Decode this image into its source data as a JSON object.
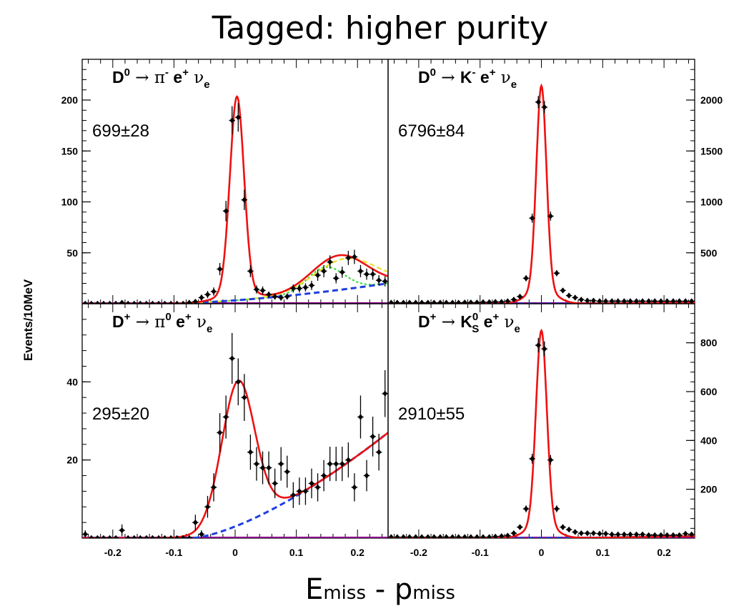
{
  "slide": {
    "title": "Tagged:  higher purity",
    "xaxis_title_main": "E",
    "xaxis_title_sub1": "miss",
    "xaxis_title_dash": " - p",
    "xaxis_title_sub2": "miss",
    "yaxis_title": "Events/10MeV"
  },
  "colors": {
    "fit_total": "#ee1111",
    "background": "#1f3fe0",
    "peaking_green": "#33dd33",
    "peaking_yellow": "#e8e022",
    "data": "#000000",
    "baseline": "#880088"
  },
  "chart_data": [
    {
      "type": "scatter",
      "decay": "D0 → π- e+ νe",
      "decay_parts": {
        "parent": "D",
        "parent_sup": "0",
        "arrow": "→",
        "meson": "π",
        "meson_sup": "-",
        "lepton": "e",
        "lepton_sup": "+",
        "nu": "ν",
        "nu_sub": "e"
      },
      "yield": "699±28",
      "xlim": [
        -0.25,
        0.25
      ],
      "ylim": [
        0,
        240
      ],
      "yticks": [
        50,
        100,
        150,
        200
      ],
      "ytick_side": "left",
      "xticks": [],
      "fit": {
        "peak_mu": 0.003,
        "peak_amp": 192,
        "peak_sigma": 0.0115,
        "tail_amp": 8,
        "tail_sigma": 0.028,
        "bump_amp": 34,
        "bump_mu": 0.17,
        "bump_sigma": 0.045,
        "bump2_amp": 0,
        "bump2_mu": 0,
        "bump2_sigma": 1,
        "bkg_start": -0.12,
        "bkg_end": 0.25,
        "bkg_level": 20,
        "bkg_power": 1.6
      },
      "components": [
        {
          "kind": "green",
          "amp": 24,
          "mu": 0.148,
          "sigma": 0.03
        },
        {
          "kind": "yellow",
          "amp": 30,
          "mu": 0.18,
          "sigma": 0.05
        }
      ],
      "points": {
        "x": [
          -0.245,
          -0.235,
          -0.225,
          -0.215,
          -0.205,
          -0.195,
          -0.185,
          -0.175,
          -0.165,
          -0.155,
          -0.145,
          -0.135,
          -0.125,
          -0.115,
          -0.105,
          -0.095,
          -0.085,
          -0.075,
          -0.065,
          -0.055,
          -0.045,
          -0.035,
          -0.025,
          -0.015,
          -0.005,
          0.005,
          0.015,
          0.025,
          0.035,
          0.045,
          0.055,
          0.065,
          0.075,
          0.085,
          0.095,
          0.105,
          0.115,
          0.125,
          0.135,
          0.145,
          0.155,
          0.165,
          0.175,
          0.185,
          0.195,
          0.205,
          0.215,
          0.225,
          0.235,
          0.245
        ],
        "y": [
          0,
          0,
          0,
          0,
          0,
          0,
          1,
          0,
          0,
          0,
          0,
          0,
          0,
          0,
          0,
          0,
          0,
          1,
          2,
          6,
          9,
          12,
          34,
          91,
          180,
          183,
          102,
          32,
          14,
          13,
          9,
          7,
          6,
          7,
          15,
          15,
          16,
          18,
          28,
          32,
          41,
          25,
          31,
          45,
          46,
          32,
          29,
          29,
          23,
          22
        ],
        "err": [
          1,
          1,
          1,
          1,
          1,
          1,
          1.5,
          1,
          1,
          1,
          1,
          1,
          1,
          1,
          1,
          1,
          1,
          1.5,
          2,
          3,
          3.5,
          4,
          6,
          10,
          14,
          14,
          10,
          6,
          4,
          4,
          3,
          3,
          3,
          3,
          4,
          4,
          4,
          4.5,
          5.5,
          6,
          6.5,
          5,
          5.5,
          7,
          7,
          6,
          5.5,
          5.5,
          5,
          5
        ]
      }
    },
    {
      "type": "scatter",
      "decay": "D0 → K- e+ νe",
      "decay_parts": {
        "parent": "D",
        "parent_sup": "0",
        "arrow": "→",
        "meson": "K",
        "meson_sup": "-",
        "lepton": "e",
        "lepton_sup": "+",
        "nu": "ν",
        "nu_sub": "e"
      },
      "yield": "6796±84",
      "xlim": [
        -0.25,
        0.25
      ],
      "ylim": [
        0,
        2400
      ],
      "yticks": [
        500,
        1000,
        1500,
        2000
      ],
      "ytick_side": "right",
      "xticks": [],
      "fit": {
        "peak_mu": 0.0,
        "peak_amp": 1990,
        "peak_sigma": 0.0082,
        "tail_amp": 150,
        "tail_sigma": 0.022,
        "bump_amp": 0,
        "bump_mu": 0,
        "bump_sigma": 1,
        "bump2_amp": 0,
        "bump2_mu": 0,
        "bump2_sigma": 1,
        "bkg_start": 0.05,
        "bkg_end": 0.25,
        "bkg_level": 12,
        "bkg_power": 1.0
      },
      "components": [],
      "points": {
        "x": [
          -0.245,
          -0.235,
          -0.225,
          -0.215,
          -0.205,
          -0.195,
          -0.185,
          -0.175,
          -0.165,
          -0.155,
          -0.145,
          -0.135,
          -0.125,
          -0.115,
          -0.105,
          -0.095,
          -0.085,
          -0.075,
          -0.065,
          -0.055,
          -0.045,
          -0.035,
          -0.025,
          -0.015,
          -0.005,
          0.005,
          0.015,
          0.025,
          0.035,
          0.045,
          0.055,
          0.065,
          0.075,
          0.085,
          0.095,
          0.105,
          0.115,
          0.125,
          0.135,
          0.145,
          0.155,
          0.165,
          0.175,
          0.185,
          0.195,
          0.205,
          0.215,
          0.225,
          0.235,
          0.245
        ],
        "y": [
          10,
          10,
          10,
          10,
          10,
          10,
          10,
          10,
          10,
          10,
          10,
          10,
          12,
          12,
          12,
          15,
          15,
          18,
          18,
          25,
          40,
          70,
          250,
          840,
          1980,
          1930,
          860,
          300,
          130,
          80,
          60,
          40,
          30,
          30,
          25,
          25,
          25,
          25,
          25,
          25,
          25,
          25,
          25,
          25,
          25,
          25,
          25,
          25,
          25,
          25
        ],
        "err": [
          8,
          8,
          8,
          8,
          8,
          8,
          8,
          8,
          8,
          8,
          8,
          8,
          8,
          8,
          8,
          8,
          8,
          8,
          8,
          10,
          14,
          18,
          30,
          45,
          60,
          60,
          45,
          30,
          20,
          16,
          14,
          12,
          10,
          10,
          10,
          10,
          10,
          10,
          10,
          10,
          10,
          10,
          10,
          10,
          10,
          10,
          10,
          10,
          10,
          10
        ]
      }
    },
    {
      "type": "scatter",
      "decay": "D+ → π0 e+ νe",
      "decay_parts": {
        "parent": "D",
        "parent_sup": "+",
        "arrow": "→",
        "meson": "π",
        "meson_sup": "0",
        "lepton": "e",
        "lepton_sup": "+",
        "nu": "ν",
        "nu_sub": "e"
      },
      "yield": "295±20",
      "xlim": [
        -0.25,
        0.25
      ],
      "ylim": [
        0,
        60
      ],
      "yticks": [
        20,
        40
      ],
      "ytick_side": "left",
      "xticks": [
        -0.2,
        -0.1,
        0,
        0.1,
        0.2
      ],
      "fit": {
        "peak_mu": 0.005,
        "peak_amp": 32,
        "peak_sigma": 0.026,
        "tail_amp": 5,
        "tail_sigma": 0.04,
        "bump_amp": 0,
        "bump_mu": 0,
        "bump_sigma": 1,
        "bump2_amp": 0,
        "bump2_mu": 0,
        "bump2_sigma": 1,
        "bkg_start": -0.07,
        "bkg_end": 0.25,
        "bkg_level": 27,
        "bkg_power": 1.45
      },
      "components": [],
      "points": {
        "x": [
          -0.245,
          -0.235,
          -0.225,
          -0.215,
          -0.205,
          -0.195,
          -0.185,
          -0.175,
          -0.165,
          -0.155,
          -0.145,
          -0.135,
          -0.125,
          -0.115,
          -0.105,
          -0.095,
          -0.085,
          -0.075,
          -0.065,
          -0.055,
          -0.045,
          -0.035,
          -0.025,
          -0.015,
          -0.005,
          0.005,
          0.015,
          0.025,
          0.035,
          0.045,
          0.055,
          0.065,
          0.075,
          0.085,
          0.095,
          0.105,
          0.115,
          0.125,
          0.135,
          0.145,
          0.155,
          0.165,
          0.175,
          0.185,
          0.195,
          0.205,
          0.215,
          0.225,
          0.235,
          0.245
        ],
        "y": [
          1,
          0,
          0,
          0,
          0,
          0,
          2,
          0,
          0,
          0,
          0,
          0,
          0,
          0,
          0,
          0,
          0,
          0,
          4,
          1,
          8,
          13,
          27,
          31,
          46,
          40,
          36,
          22,
          19,
          18,
          18,
          14,
          19,
          17,
          11,
          12,
          12,
          14,
          13,
          16,
          19,
          19,
          19,
          20,
          13,
          31,
          16,
          26,
          22,
          37
        ],
        "err": [
          1,
          0.6,
          0.6,
          0.6,
          0.6,
          0.6,
          1.5,
          0.6,
          0.6,
          0.6,
          0.6,
          0.6,
          0.6,
          0.6,
          0.6,
          0.6,
          0.6,
          0.6,
          2,
          1,
          2.8,
          3.6,
          5,
          5.5,
          6.5,
          6,
          6,
          4.5,
          4.3,
          4.2,
          4.2,
          3.8,
          4.3,
          4.1,
          3.3,
          3.5,
          3.5,
          3.8,
          3.6,
          4,
          4.4,
          4.4,
          4.4,
          4.5,
          3.6,
          5.5,
          4,
          5.1,
          4.7,
          6
        ]
      }
    },
    {
      "type": "scatter",
      "decay": "D+ → KS0 e+ νe",
      "decay_parts": {
        "parent": "D",
        "parent_sup": "+",
        "arrow": "→",
        "meson": "K",
        "meson_sup": "0",
        "meson_sub": "S",
        "lepton": "e",
        "lepton_sup": "+",
        "nu": "ν",
        "nu_sub": "e"
      },
      "yield": "2910±55",
      "xlim": [
        -0.25,
        0.25
      ],
      "ylim": [
        0,
        960
      ],
      "yticks": [
        200,
        400,
        600,
        800
      ],
      "ytick_side": "right",
      "xticks": [
        -0.2,
        -0.1,
        0,
        0.1,
        0.2
      ],
      "fit": {
        "peak_mu": 0.0,
        "peak_amp": 790,
        "peak_sigma": 0.0088,
        "tail_amp": 60,
        "tail_sigma": 0.022,
        "bump_amp": 0,
        "bump_mu": 0,
        "bump_sigma": 1,
        "bump2_amp": 0,
        "bump2_mu": 0,
        "bump2_sigma": 1,
        "bkg_start": 0.05,
        "bkg_end": 0.25,
        "bkg_level": 8,
        "bkg_power": 1.0
      },
      "components": [],
      "points": {
        "x": [
          -0.245,
          -0.235,
          -0.225,
          -0.215,
          -0.205,
          -0.195,
          -0.185,
          -0.175,
          -0.165,
          -0.155,
          -0.145,
          -0.135,
          -0.125,
          -0.115,
          -0.105,
          -0.095,
          -0.085,
          -0.075,
          -0.065,
          -0.055,
          -0.045,
          -0.035,
          -0.025,
          -0.015,
          -0.005,
          0.005,
          0.015,
          0.025,
          0.035,
          0.045,
          0.055,
          0.065,
          0.075,
          0.085,
          0.095,
          0.105,
          0.115,
          0.125,
          0.135,
          0.145,
          0.155,
          0.165,
          0.175,
          0.185,
          0.195,
          0.205,
          0.215,
          0.225,
          0.235,
          0.245
        ],
        "y": [
          4,
          4,
          4,
          4,
          4,
          4,
          4,
          4,
          4,
          4,
          4,
          4,
          4,
          4,
          4,
          4,
          4,
          6,
          8,
          10,
          20,
          45,
          120,
          325,
          790,
          775,
          320,
          120,
          45,
          35,
          25,
          20,
          20,
          20,
          18,
          18,
          15,
          15,
          15,
          15,
          15,
          15,
          12,
          12,
          12,
          12,
          12,
          12,
          18,
          15
        ],
        "err": [
          4,
          4,
          4,
          4,
          4,
          4,
          4,
          4,
          4,
          4,
          4,
          4,
          4,
          4,
          4,
          4,
          4,
          4,
          5,
          6,
          7,
          9,
          14,
          20,
          30,
          30,
          20,
          14,
          9,
          8,
          7,
          6,
          6,
          6,
          6,
          6,
          6,
          6,
          6,
          6,
          6,
          6,
          6,
          6,
          6,
          6,
          6,
          6,
          6,
          6
        ]
      }
    }
  ]
}
